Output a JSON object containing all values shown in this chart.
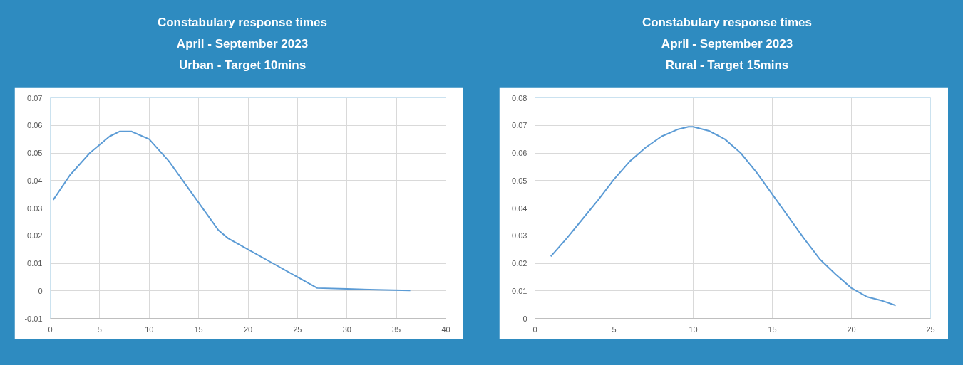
{
  "chart_data": [
    {
      "type": "line",
      "title": "Constabulary response times",
      "subtitle": "April - September 2023\nUrban - Target 10mins",
      "xlim": [
        0,
        40
      ],
      "xticks": [
        0,
        5,
        10,
        15,
        20,
        25,
        30,
        35,
        40
      ],
      "ylim": [
        -0.01,
        0.07
      ],
      "yticks": [
        -0.01,
        0,
        0.01,
        0.02,
        0.03,
        0.04,
        0.05,
        0.06,
        0.07
      ],
      "grid": true,
      "series": [
        {
          "color": "#5b9bd5",
          "x": [
            0.3,
            2,
            4,
            6,
            7,
            8.2,
            10,
            12,
            14,
            16,
            17,
            18,
            20,
            22.5,
            25,
            27,
            30,
            33,
            36.4
          ],
          "values": [
            0.033,
            0.042,
            0.05,
            0.056,
            0.0578,
            0.0578,
            0.055,
            0.047,
            0.037,
            0.027,
            0.022,
            0.019,
            0.015,
            0.01,
            0.005,
            0.001,
            0.0007,
            0.0004,
            0.0001
          ]
        }
      ]
    },
    {
      "type": "line",
      "title": "Constabulary response times",
      "subtitle": "April - September 2023\nRural - Target 15mins",
      "xlim": [
        0,
        25
      ],
      "xticks": [
        0,
        5,
        10,
        15,
        20,
        25
      ],
      "ylim": [
        0,
        0.08
      ],
      "yticks": [
        0,
        0.01,
        0.02,
        0.03,
        0.04,
        0.05,
        0.06,
        0.07,
        0.08
      ],
      "grid": true,
      "series": [
        {
          "color": "#5b9bd5",
          "x": [
            1,
            2,
            3,
            4,
            5,
            6,
            7,
            8,
            9,
            9.7,
            10,
            11,
            12,
            13,
            14,
            15,
            16,
            17,
            18,
            19,
            20,
            21,
            22,
            22.8
          ],
          "values": [
            0.0225,
            0.029,
            0.036,
            0.043,
            0.0505,
            0.057,
            0.062,
            0.066,
            0.0685,
            0.0695,
            0.0695,
            0.068,
            0.065,
            0.06,
            0.053,
            0.045,
            0.037,
            0.029,
            0.0215,
            0.016,
            0.011,
            0.0078,
            0.0063,
            0.0047
          ]
        }
      ]
    }
  ]
}
